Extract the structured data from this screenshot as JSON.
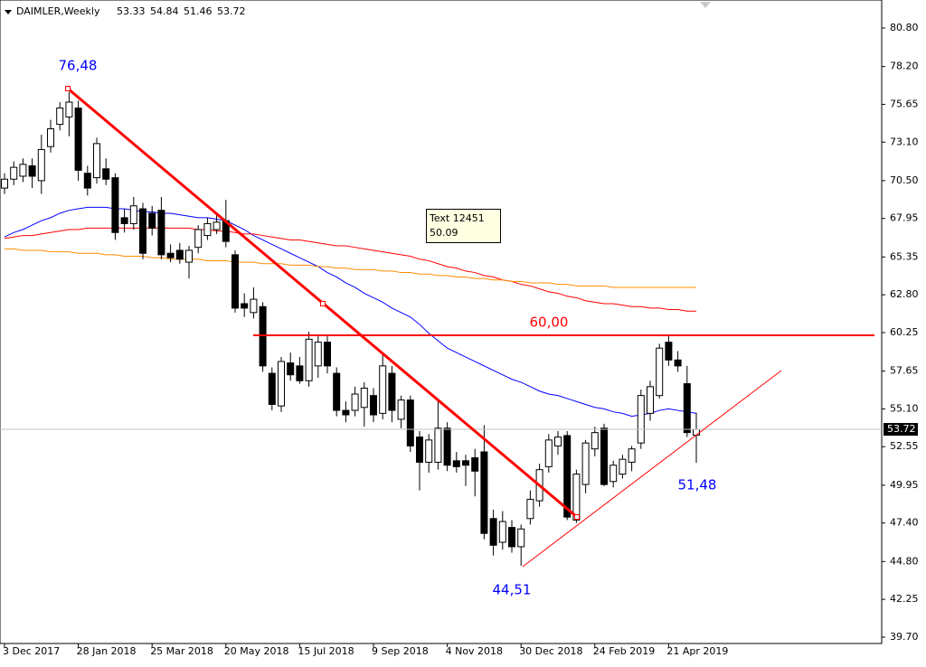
{
  "chart_data": {
    "type": "candlestick",
    "title": "DAIMLER,Weekly",
    "categories": [
      "3 Dec 2017",
      null,
      null,
      null,
      null,
      null,
      null,
      null,
      "28 Jan 2018",
      null,
      null,
      null,
      null,
      null,
      null,
      null,
      "25 Mar 2018",
      null,
      null,
      null,
      null,
      null,
      null,
      null,
      "20 May 2018",
      null,
      null,
      null,
      null,
      null,
      null,
      null,
      "15 Jul 2018",
      null,
      null,
      null,
      null,
      null,
      null,
      null,
      "9 Sep 2018",
      null,
      null,
      null,
      null,
      null,
      null,
      null,
      "4 Nov 2018",
      null,
      null,
      null,
      null,
      null,
      null,
      null,
      "30 Dec 2018",
      null,
      null,
      null,
      null,
      null,
      null,
      null,
      "24 Feb 2019",
      null,
      null,
      null,
      null,
      null,
      null,
      null,
      "21 Apr 2019",
      null,
      null,
      null
    ],
    "open": [
      70.0,
      70.6,
      70.8,
      71.5,
      70.5,
      72.8,
      74.3,
      74.8,
      75.4,
      71.0,
      70.7,
      71.3,
      70.7,
      68.0,
      67.6,
      68.6,
      68.3,
      68.5,
      65.6,
      65.8,
      65.0,
      66.0,
      66.8,
      67.2,
      67.8,
      65.5,
      62.2,
      61.6,
      62.0,
      57.5,
      55.3,
      58.2,
      58.0,
      57.0,
      58.0,
      59.6,
      57.5,
      55.0,
      55.0,
      55.2,
      56.0,
      54.8,
      57.5,
      54.4,
      55.7,
      53.2,
      51.5,
      51.5,
      53.8,
      51.6,
      51.6,
      51.8,
      52.2,
      47.7,
      46.1,
      47.1,
      45.8,
      47.7,
      48.9,
      51.2,
      52.6,
      53.3,
      47.6,
      50.0,
      52.4,
      53.8,
      50.2,
      50.7,
      51.5,
      52.8,
      54.8,
      56.0,
      59.6,
      58.4,
      56.8,
      53.33
    ],
    "high": [
      71.0,
      71.8,
      72.0,
      72.0,
      73.6,
      74.6,
      75.8,
      76.48,
      75.9,
      71.5,
      73.4,
      72.0,
      71.0,
      68.6,
      69.4,
      69.0,
      68.8,
      69.4,
      66.2,
      66.3,
      66.1,
      67.5,
      68.0,
      68.3,
      69.2,
      65.8,
      62.9,
      63.3,
      62.3,
      57.9,
      58.6,
      58.9,
      58.6,
      60.3,
      60.0,
      60.0,
      57.9,
      55.6,
      56.6,
      56.9,
      56.5,
      58.9,
      58.0,
      56.0,
      56.0,
      53.6,
      53.4,
      55.6,
      54.2,
      52.2,
      52.0,
      52.4,
      54.0,
      48.3,
      48.2,
      47.6,
      47.3,
      49.6,
      51.4,
      53.4,
      53.6,
      53.6,
      51.0,
      53.0,
      53.9,
      54.1,
      51.6,
      52.0,
      52.6,
      56.4,
      57.0,
      59.5,
      60.1,
      59.0,
      58.0,
      54.84
    ],
    "low": [
      69.6,
      70.2,
      70.4,
      70.0,
      69.6,
      72.4,
      73.9,
      73.5,
      70.5,
      69.5,
      70.3,
      70.2,
      66.5,
      67.0,
      67.2,
      65.2,
      66.8,
      65.2,
      65.0,
      64.9,
      63.9,
      65.6,
      66.5,
      66.9,
      66.0,
      61.6,
      61.3,
      61.2,
      57.6,
      55.0,
      54.9,
      57.0,
      56.8,
      56.6,
      57.2,
      57.5,
      54.6,
      54.2,
      54.6,
      53.9,
      54.2,
      54.4,
      54.2,
      53.8,
      52.2,
      49.6,
      50.8,
      51.0,
      50.9,
      50.8,
      49.9,
      49.2,
      46.3,
      45.2,
      45.6,
      45.4,
      44.51,
      47.3,
      48.5,
      50.8,
      52.0,
      47.6,
      47.4,
      49.4,
      51.9,
      49.9,
      49.8,
      50.4,
      50.9,
      52.4,
      54.3,
      55.8,
      58.0,
      57.6,
      53.2,
      51.46
    ],
    "close": [
      70.6,
      71.4,
      71.6,
      70.8,
      72.6,
      74.0,
      75.4,
      75.8,
      71.2,
      70.0,
      73.0,
      70.6,
      67.0,
      67.6,
      68.8,
      65.6,
      67.3,
      65.5,
      65.3,
      65.2,
      65.8,
      67.2,
      67.6,
      67.7,
      66.4,
      61.9,
      61.9,
      62.5,
      58.0,
      55.4,
      58.3,
      57.4,
      57.0,
      59.8,
      59.6,
      58.0,
      55.0,
      54.7,
      56.1,
      56.5,
      54.7,
      58.0,
      55.0,
      55.7,
      52.6,
      51.5,
      53.0,
      53.8,
      51.3,
      51.2,
      51.3,
      50.9,
      46.7,
      45.9,
      47.5,
      45.8,
      47.0,
      49.0,
      51.0,
      53.0,
      53.2,
      47.8,
      50.7,
      52.8,
      53.5,
      50.0,
      51.3,
      51.7,
      52.4,
      56.0,
      56.6,
      59.2,
      58.4,
      58.0,
      53.5,
      53.72
    ],
    "moving_averages": [
      {
        "color": "#0000ff",
        "values": [
          66.7,
          67.0,
          67.2,
          67.5,
          67.8,
          68.0,
          68.3,
          68.5,
          68.6,
          68.7,
          68.7,
          68.7,
          68.6,
          68.6,
          68.5,
          68.4,
          68.4,
          68.3,
          68.3,
          68.2,
          68.1,
          68.0,
          68.0,
          67.9,
          67.8,
          67.5,
          67.2,
          66.8,
          66.5,
          66.2,
          65.9,
          65.6,
          65.3,
          65.0,
          64.7,
          64.3,
          64.0,
          63.6,
          63.3,
          62.9,
          62.6,
          62.3,
          61.9,
          61.6,
          61.3,
          60.8,
          60.2,
          59.7,
          59.2,
          58.9,
          58.6,
          58.3,
          58.0,
          57.7,
          57.4,
          57.1,
          56.9,
          56.6,
          56.3,
          56.1,
          56.0,
          55.8,
          55.6,
          55.4,
          55.2,
          55.1,
          54.9,
          54.8,
          54.6,
          54.7,
          54.8,
          55.0,
          55.1,
          55.0,
          54.9,
          54.8
        ]
      },
      {
        "color": "#ff0000",
        "values": [
          66.6,
          66.7,
          66.8,
          66.8,
          66.9,
          67.0,
          67.1,
          67.2,
          67.2,
          67.3,
          67.3,
          67.3,
          67.3,
          67.3,
          67.3,
          67.3,
          67.3,
          67.3,
          67.3,
          67.3,
          67.3,
          67.2,
          67.2,
          67.1,
          67.1,
          67.0,
          66.9,
          66.9,
          66.8,
          66.7,
          66.6,
          66.5,
          66.5,
          66.4,
          66.3,
          66.2,
          66.1,
          66.1,
          66.0,
          65.9,
          65.8,
          65.7,
          65.6,
          65.5,
          65.4,
          65.2,
          65.1,
          64.9,
          64.7,
          64.6,
          64.4,
          64.3,
          64.1,
          64.0,
          63.8,
          63.7,
          63.5,
          63.4,
          63.2,
          63.0,
          62.9,
          62.7,
          62.6,
          62.4,
          62.3,
          62.2,
          62.2,
          62.1,
          62.0,
          62.0,
          61.9,
          61.9,
          61.8,
          61.8,
          61.7,
          61.7
        ]
      },
      {
        "color": "#ff8c00",
        "values": [
          65.9,
          65.9,
          65.8,
          65.8,
          65.8,
          65.7,
          65.7,
          65.7,
          65.6,
          65.6,
          65.6,
          65.5,
          65.5,
          65.4,
          65.4,
          65.4,
          65.3,
          65.3,
          65.2,
          65.2,
          65.2,
          65.2,
          65.1,
          65.1,
          65.1,
          65.0,
          65.0,
          65.0,
          64.9,
          64.9,
          64.9,
          64.8,
          64.8,
          64.8,
          64.7,
          64.7,
          64.6,
          64.6,
          64.5,
          64.5,
          64.5,
          64.4,
          64.4,
          64.3,
          64.3,
          64.2,
          64.2,
          64.1,
          64.1,
          64.0,
          64.0,
          63.9,
          63.9,
          63.8,
          63.8,
          63.7,
          63.7,
          63.6,
          63.6,
          63.6,
          63.5,
          63.5,
          63.4,
          63.4,
          63.4,
          63.4,
          63.3,
          63.3,
          63.3,
          63.3,
          63.3,
          63.3,
          63.3,
          63.3,
          63.3,
          63.3
        ]
      }
    ],
    "ylim": [
      39.27,
      82.69
    ],
    "yticks": [
      {
        "value": 80.8,
        "label": "80.80"
      },
      {
        "value": 78.2,
        "label": "78.20"
      },
      {
        "value": 75.65,
        "label": "75.65"
      },
      {
        "value": 73.1,
        "label": "73.10"
      },
      {
        "value": 70.5,
        "label": "70.50"
      },
      {
        "value": 67.95,
        "label": "67.95"
      },
      {
        "value": 65.35,
        "label": "65.35"
      },
      {
        "value": 62.8,
        "label": "62.80"
      },
      {
        "value": 60.25,
        "label": "60.25"
      },
      {
        "value": 57.65,
        "label": "57.65"
      },
      {
        "value": 55.1,
        "label": "55.10"
      },
      {
        "value": 52.55,
        "label": "52.55"
      },
      {
        "value": 49.95,
        "label": "49.95"
      },
      {
        "value": 47.4,
        "label": "47.40"
      },
      {
        "value": 44.8,
        "label": "44.80"
      },
      {
        "value": 42.25,
        "label": "42.25"
      },
      {
        "value": 39.7,
        "label": "39.70"
      }
    ],
    "annotations": [
      "76,48",
      "60,00",
      "44,51",
      "51,48"
    ],
    "tooltip": [
      "Text 12451",
      "50.09"
    ],
    "bull_color": "#ffffff",
    "bear_color": "#000000"
  }
}
